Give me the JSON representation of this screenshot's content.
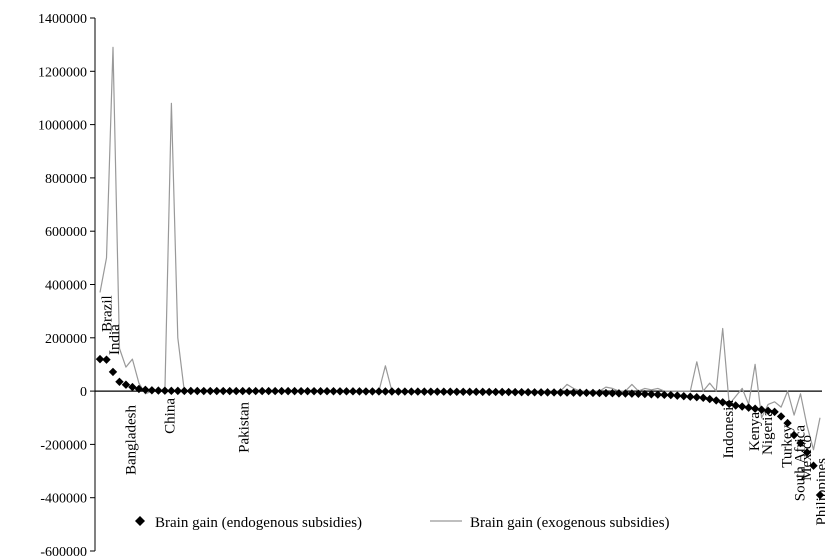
{
  "chart_data": {
    "type": "line",
    "ylim": [
      -600000,
      1400000
    ],
    "y_ticks": [
      1400000,
      1200000,
      1000000,
      800000,
      600000,
      400000,
      200000,
      0,
      -200000,
      -400000,
      -600000
    ],
    "y_tick_labels": [
      "1400000",
      "1200000",
      "1000000",
      "800000",
      "600000",
      "400000",
      "200000",
      "0",
      "-200000",
      "-400000",
      "-600000"
    ],
    "x_count": 112,
    "series": [
      {
        "name": "Brain gain (endogenous subsidies)",
        "style": "markers",
        "marker": "diamond",
        "color": "#000000",
        "values": [
          120000,
          118000,
          72000,
          35000,
          24000,
          15000,
          8000,
          5000,
          3000,
          2000,
          1500,
          1000,
          800,
          600,
          500,
          400,
          300,
          250,
          200,
          150,
          100,
          80,
          60,
          40,
          20,
          10,
          0,
          -10,
          -20,
          -50,
          -100,
          -150,
          -200,
          -300,
          -400,
          -500,
          -600,
          -700,
          -800,
          -900,
          -1000,
          -1100,
          -1200,
          -1300,
          -1400,
          -1500,
          -1600,
          -1700,
          -1800,
          -1900,
          -2000,
          -2100,
          -2200,
          -2300,
          -2400,
          -2500,
          -2600,
          -2700,
          -2800,
          -2900,
          -3000,
          -3200,
          -3400,
          -3600,
          -3800,
          -4000,
          -4200,
          -4400,
          -4600,
          -4800,
          -5000,
          -5300,
          -5600,
          -5900,
          -6200,
          -6500,
          -6800,
          -7200,
          -7600,
          -8000,
          -8500,
          -9000,
          -9500,
          -10000,
          -11000,
          -12000,
          -13000,
          -14000,
          -15000,
          -17000,
          -19000,
          -21000,
          -23000,
          -25000,
          -30000,
          -35000,
          -42000,
          -48000,
          -54000,
          -58000,
          -62000,
          -66000,
          -70000,
          -74000,
          -78000,
          -95000,
          -120000,
          -165000,
          -195000,
          -230000,
          -280000,
          -390000
        ]
      },
      {
        "name": "Brain gain (exogenous subsidies)",
        "style": "line",
        "color": "#999999",
        "values": [
          370000,
          500000,
          1290000,
          160000,
          90000,
          120000,
          30000,
          -10000,
          0,
          5000,
          0,
          1080000,
          200000,
          0,
          0,
          0,
          0,
          0,
          0,
          0,
          0,
          0,
          0,
          0,
          0,
          0,
          0,
          0,
          0,
          0,
          0,
          0,
          0,
          0,
          0,
          0,
          0,
          0,
          0,
          0,
          0,
          0,
          0,
          0,
          95000,
          0,
          0,
          0,
          0,
          0,
          0,
          0,
          0,
          0,
          0,
          0,
          0,
          0,
          0,
          0,
          0,
          0,
          0,
          0,
          0,
          0,
          0,
          0,
          0,
          0,
          0,
          0,
          25000,
          10000,
          0,
          0,
          0,
          0,
          15000,
          10000,
          0,
          0,
          25000,
          0,
          10000,
          5000,
          10000,
          0,
          0,
          0,
          0,
          0,
          110000,
          0,
          30000,
          0,
          235000,
          -50000,
          -20000,
          10000,
          -50000,
          100000,
          -100000,
          -50000,
          -40000,
          -60000,
          0,
          -90000,
          -10000,
          -130000,
          -220000,
          -100000
        ]
      }
    ],
    "annotations": [
      {
        "text": "Brazil",
        "index": 1
      },
      {
        "text": "India",
        "index": 2
      },
      {
        "text": "Bangladesh",
        "index": 5
      },
      {
        "text": "China",
        "index": 11
      },
      {
        "text": "Pakistan",
        "index": 22
      },
      {
        "text": "Indonesia",
        "index": 97
      },
      {
        "text": "Kenya",
        "index": 101
      },
      {
        "text": "Nigeria",
        "index": 103
      },
      {
        "text": "Turkey",
        "index": 106
      },
      {
        "text": "South Africa",
        "index": 108
      },
      {
        "text": "Mexico",
        "index": 109
      },
      {
        "text": "Philippines",
        "index": 111
      }
    ],
    "legend_position": "bottom"
  }
}
